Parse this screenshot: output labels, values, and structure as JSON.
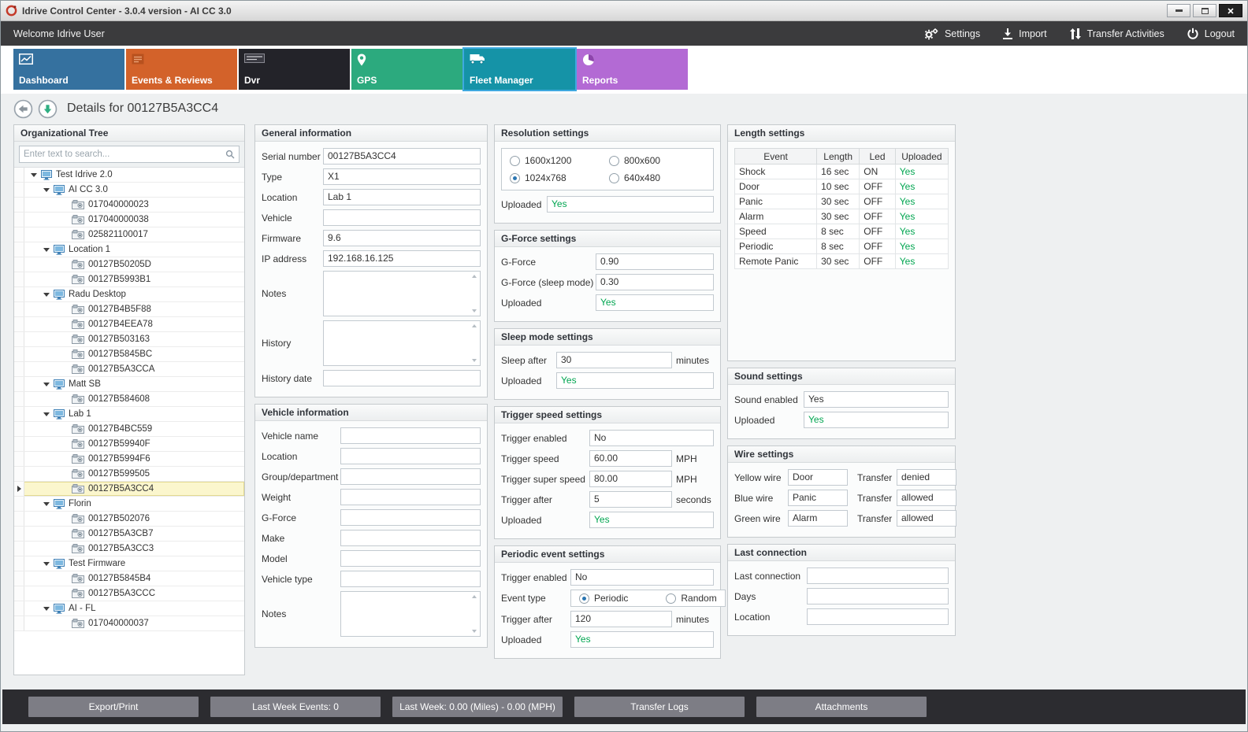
{
  "window": {
    "title": "Idrive Control Center - 3.0.4 version - AI CC 3.0"
  },
  "topbar": {
    "welcome": "Welcome Idrive User",
    "settings": "Settings",
    "import": "Import",
    "transfer_activities": "Transfer Activities",
    "logout": "Logout"
  },
  "tabs": [
    {
      "label": "Dashboard",
      "color": "#35719f",
      "selected": false
    },
    {
      "label": "Events & Reviews",
      "color": "#d3622a",
      "selected": false
    },
    {
      "label": "Dvr",
      "color": "#232329",
      "selected": false
    },
    {
      "label": "GPS",
      "color": "#2caa7e",
      "selected": false
    },
    {
      "label": "Fleet Manager",
      "color": "#1593a7",
      "selected": true
    },
    {
      "label": "Reports",
      "color": "#b36ad4",
      "selected": false
    }
  ],
  "details": {
    "title": "Details for 00127B5A3CC4"
  },
  "org_tree": {
    "title": "Organizational Tree",
    "search_placeholder": "Enter text to search...",
    "items": [
      {
        "label": "Test Idrive 2.0",
        "kind": "group",
        "depth": 0
      },
      {
        "label": "AI CC 3.0",
        "kind": "group",
        "depth": 1
      },
      {
        "label": "017040000023",
        "kind": "device",
        "depth": 2
      },
      {
        "label": "017040000038",
        "kind": "device",
        "depth": 2
      },
      {
        "label": "025821100017",
        "kind": "device",
        "depth": 2
      },
      {
        "label": "Location 1",
        "kind": "group",
        "depth": 1
      },
      {
        "label": "00127B50205D",
        "kind": "device",
        "depth": 2
      },
      {
        "label": "00127B5993B1",
        "kind": "device",
        "depth": 2
      },
      {
        "label": "Radu Desktop",
        "kind": "group",
        "depth": 1
      },
      {
        "label": "00127B4B5F88",
        "kind": "device",
        "depth": 2
      },
      {
        "label": "00127B4EEA78",
        "kind": "device",
        "depth": 2
      },
      {
        "label": "00127B503163",
        "kind": "device",
        "depth": 2
      },
      {
        "label": "00127B5845BC",
        "kind": "device",
        "depth": 2
      },
      {
        "label": "00127B5A3CCA",
        "kind": "device",
        "depth": 2
      },
      {
        "label": "Matt SB",
        "kind": "group",
        "depth": 1
      },
      {
        "label": "00127B584608",
        "kind": "device",
        "depth": 2
      },
      {
        "label": "Lab 1",
        "kind": "group",
        "depth": 1
      },
      {
        "label": "00127B4BC559",
        "kind": "device",
        "depth": 2
      },
      {
        "label": "00127B59940F",
        "kind": "device",
        "depth": 2
      },
      {
        "label": "00127B5994F6",
        "kind": "device",
        "depth": 2
      },
      {
        "label": "00127B599505",
        "kind": "device",
        "depth": 2
      },
      {
        "label": "00127B5A3CC4",
        "kind": "device",
        "depth": 2,
        "selected": true
      },
      {
        "label": "Florin",
        "kind": "group",
        "depth": 1
      },
      {
        "label": "00127B502076",
        "kind": "device",
        "depth": 2
      },
      {
        "label": "00127B5A3CB7",
        "kind": "device",
        "depth": 2
      },
      {
        "label": "00127B5A3CC3",
        "kind": "device",
        "depth": 2
      },
      {
        "label": "Test Firmware",
        "kind": "group",
        "depth": 1
      },
      {
        "label": "00127B5845B4",
        "kind": "device",
        "depth": 2
      },
      {
        "label": "00127B5A3CCC",
        "kind": "device",
        "depth": 2
      },
      {
        "label": "AI - FL",
        "kind": "group",
        "depth": 1
      },
      {
        "label": "017040000037",
        "kind": "device",
        "depth": 2
      }
    ]
  },
  "general_info": {
    "title": "General information",
    "rows": [
      {
        "label": "Serial number",
        "value": "00127B5A3CC4",
        "type": "text"
      },
      {
        "label": "Type",
        "value": "X1",
        "type": "text"
      },
      {
        "label": "Location",
        "value": "Lab 1",
        "type": "text"
      },
      {
        "label": "Vehicle",
        "value": "",
        "type": "text"
      },
      {
        "label": "Firmware",
        "value": "9.6",
        "type": "text"
      },
      {
        "label": "IP address",
        "value": "192.168.16.125",
        "type": "text"
      },
      {
        "label": "Notes",
        "value": "",
        "type": "textarea"
      },
      {
        "label": "History",
        "value": "",
        "type": "textarea"
      },
      {
        "label": "History date",
        "value": "",
        "type": "text"
      }
    ]
  },
  "vehicle_info": {
    "title": "Vehicle information",
    "rows": [
      {
        "label": "Vehicle name",
        "value": "",
        "type": "text"
      },
      {
        "label": "Location",
        "value": "",
        "type": "text"
      },
      {
        "label": "Group/department",
        "value": "",
        "type": "text"
      },
      {
        "label": "Weight",
        "value": "",
        "type": "text"
      },
      {
        "label": "G-Force",
        "value": "",
        "type": "text"
      },
      {
        "label": "Make",
        "value": "",
        "type": "text"
      },
      {
        "label": "Model",
        "value": "",
        "type": "text"
      },
      {
        "label": "Vehicle type",
        "value": "",
        "type": "text"
      },
      {
        "label": "Notes",
        "value": "",
        "type": "textarea"
      }
    ]
  },
  "resolution_settings": {
    "title": "Resolution settings",
    "options": [
      {
        "label": "1600x1200",
        "selected": false
      },
      {
        "label": "800x600",
        "selected": false
      },
      {
        "label": "1024x768",
        "selected": true
      },
      {
        "label": "640x480",
        "selected": false
      }
    ],
    "uploaded_label": "Uploaded",
    "uploaded_value": "Yes"
  },
  "gforce_settings": {
    "title": "G-Force settings",
    "rows": [
      {
        "label": "G-Force",
        "value": "0.90",
        "type": "text"
      },
      {
        "label": "G-Force (sleep mode)",
        "value": "0.30",
        "type": "text"
      },
      {
        "label": "Uploaded",
        "value": "Yes",
        "type": "text",
        "green": true
      }
    ]
  },
  "sleep_settings": {
    "title": "Sleep mode settings",
    "rows": [
      {
        "label": "Sleep after",
        "value": "30",
        "type": "text",
        "suffix": "minutes"
      },
      {
        "label": "Uploaded",
        "value": "Yes",
        "type": "text",
        "green": true
      }
    ]
  },
  "trigger_speed_settings": {
    "title": "Trigger speed settings",
    "rows": [
      {
        "label": "Trigger enabled",
        "value": "No",
        "type": "text"
      },
      {
        "label": "Trigger speed",
        "value": "60.00",
        "type": "text",
        "suffix": "MPH"
      },
      {
        "label": "Trigger super speed",
        "value": "80.00",
        "type": "text",
        "suffix": "MPH"
      },
      {
        "label": "Trigger after",
        "value": "5",
        "type": "text",
        "suffix": "seconds"
      },
      {
        "label": "Uploaded",
        "value": "Yes",
        "type": "text",
        "green": true
      }
    ]
  },
  "periodic_settings": {
    "title": "Periodic event settings",
    "rows_top": [
      {
        "label": "Trigger enabled",
        "value": "No",
        "type": "text"
      }
    ],
    "event_type_label": "Event type",
    "event_options": [
      {
        "label": "Periodic",
        "selected": true
      },
      {
        "label": "Random",
        "selected": false
      }
    ],
    "rows_bottom": [
      {
        "label": "Trigger after",
        "value": "120",
        "type": "text",
        "suffix": "minutes"
      },
      {
        "label": "Uploaded",
        "value": "Yes",
        "type": "text",
        "green": true
      }
    ]
  },
  "length_settings": {
    "title": "Length settings",
    "columns": [
      "Event",
      "Length",
      "Led",
      "Uploaded"
    ],
    "rows": [
      [
        "Shock",
        "16 sec",
        "ON",
        "Yes"
      ],
      [
        "Door",
        "10 sec",
        "OFF",
        "Yes"
      ],
      [
        "Panic",
        "30 sec",
        "OFF",
        "Yes"
      ],
      [
        "Alarm",
        "30 sec",
        "OFF",
        "Yes"
      ],
      [
        "Speed",
        "8 sec",
        "OFF",
        "Yes"
      ],
      [
        "Periodic",
        "8 sec",
        "OFF",
        "Yes"
      ],
      [
        "Remote Panic",
        "30 sec",
        "OFF",
        "Yes"
      ]
    ]
  },
  "sound_settings": {
    "title": "Sound settings",
    "rows": [
      {
        "label": "Sound enabled",
        "value": "Yes",
        "type": "text"
      },
      {
        "label": "Uploaded",
        "value": "Yes",
        "type": "text",
        "green": true
      }
    ]
  },
  "wire_settings": {
    "title": "Wire settings",
    "rows": [
      {
        "wire_label": "Yellow wire",
        "wire_value": "Door",
        "transfer_label": "Transfer",
        "transfer_value": "denied"
      },
      {
        "wire_label": "Blue wire",
        "wire_value": "Panic",
        "transfer_label": "Transfer",
        "transfer_value": "allowed"
      },
      {
        "wire_label": "Green wire",
        "wire_value": "Alarm",
        "transfer_label": "Transfer",
        "transfer_value": "allowed"
      }
    ]
  },
  "last_connection": {
    "title": "Last connection",
    "rows": [
      {
        "label": "Last connection",
        "value": "",
        "type": "text"
      },
      {
        "label": "Days",
        "value": "",
        "type": "text"
      },
      {
        "label": "Location",
        "value": "",
        "type": "text"
      }
    ]
  },
  "bottombar": {
    "buttons": [
      "Export/Print",
      "Last Week Events: 0",
      "Last Week: 0.00 (Miles) - 0.00 (MPH)",
      "Transfer Logs",
      "Attachments"
    ]
  },
  "colors": {
    "uploaded_green": "#00a550",
    "selected_tab_border": "#3fa9e0",
    "selected_row_bg": "#fbf6cd",
    "topbar_bg": "#3b3b3d",
    "bottombar_bg": "#2c2c30"
  }
}
